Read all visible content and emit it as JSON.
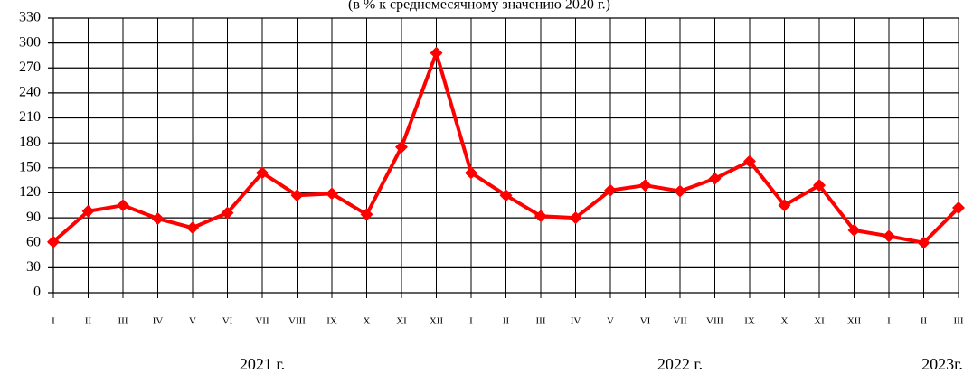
{
  "chart_data": {
    "type": "line",
    "subtitle": "(в % к среднемесячному значению 2020 г.)",
    "categories": [
      "I",
      "II",
      "III",
      "IV",
      "V",
      "VI",
      "VII",
      "VIII",
      "IX",
      "X",
      "XI",
      "XII",
      "I",
      "II",
      "III",
      "IV",
      "V",
      "VI",
      "VII",
      "VIII",
      "IX",
      "X",
      "XI",
      "XII",
      "I",
      "II",
      "III"
    ],
    "series": [
      {
        "name": null,
        "color": "#ff0000",
        "values": [
          61,
          98,
          105,
          89,
          78,
          96,
          144,
          117,
          119,
          94,
          175,
          288,
          144,
          117,
          92,
          90,
          123,
          129,
          122,
          137,
          158,
          105,
          129,
          75,
          68,
          60,
          102
        ]
      }
    ],
    "year_labels": [
      "2021 г.",
      "2022 г.",
      "2023г."
    ],
    "ylim": [
      0,
      330
    ],
    "yticks": [
      0,
      30,
      60,
      90,
      120,
      150,
      180,
      210,
      240,
      270,
      300,
      330
    ],
    "grid": true
  }
}
